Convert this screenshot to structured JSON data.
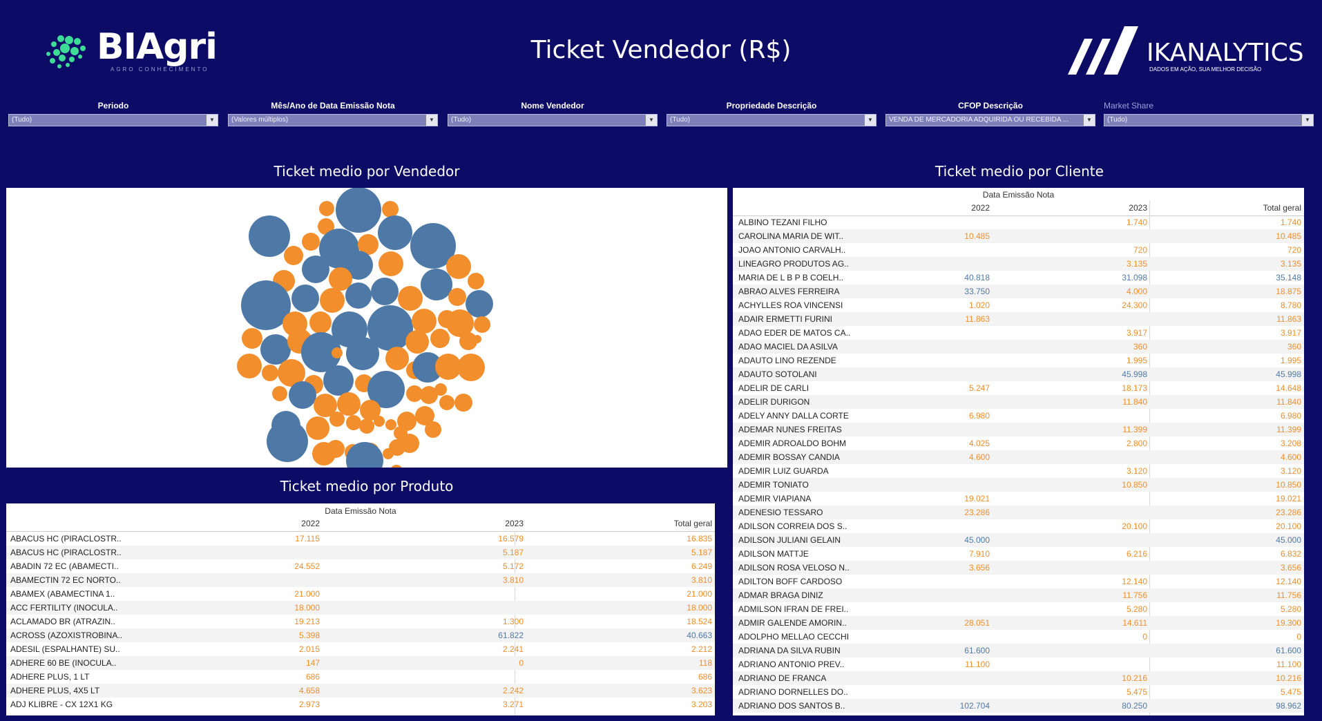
{
  "header": {
    "logo_left": "BIAgri",
    "logo_left_tagline": "AGRO CONHECIMENTO",
    "title": "Ticket Vendedor (R$)",
    "logo_right": "IKANALYTICS",
    "logo_right_tagline": "DADOS EM AÇÃO, SUA MELHOR DECISÃO"
  },
  "colors": {
    "background": "#0c0c66",
    "orange": "#f28e2b",
    "blue": "#4e79a7",
    "accent_logo": "#3ddc97"
  },
  "filters": [
    {
      "label": "Periodo",
      "value": "(Tudo)"
    },
    {
      "label": "Mês/Ano de Data Emissão Nota",
      "value": "(Valores múltiplos)"
    },
    {
      "label": "Nome Vendedor",
      "value": "(Tudo)"
    },
    {
      "label": "Propriedade Descrição",
      "value": "(Tudo)"
    },
    {
      "label": "CFOP Descrição",
      "value": "VENDA DE MERCADORIA ADQUIRIDA OU RECEBIDA ..."
    },
    {
      "label": "Market Share",
      "value": "(Tudo)"
    }
  ],
  "vendedor_section": {
    "title": "Ticket medio por Vendedor"
  },
  "produto_section": {
    "title": "Ticket medio por Produto",
    "group_header": "Data Emissão Nota",
    "columns": [
      "2022",
      "2023",
      "Total geral"
    ],
    "rows": [
      {
        "name": "ABACUS HC (PIRACLOSTR..",
        "y2022": "17.115",
        "y2023": "16.579",
        "total": "16.835",
        "c2022": "o",
        "c2023": "o",
        "ctotal": "o"
      },
      {
        "name": "ABACUS HC (PIRACLOSTR..",
        "y2022": "",
        "y2023": "5.187",
        "total": "5.187",
        "c2022": "o",
        "c2023": "o",
        "ctotal": "o"
      },
      {
        "name": "ABADIN 72 EC (ABAMECTI..",
        "y2022": "24.552",
        "y2023": "5.172",
        "total": "6.249",
        "c2022": "o",
        "c2023": "o",
        "ctotal": "o"
      },
      {
        "name": "ABAMECTIN 72 EC NORTO..",
        "y2022": "",
        "y2023": "3.810",
        "total": "3.810",
        "c2022": "o",
        "c2023": "o",
        "ctotal": "o"
      },
      {
        "name": "ABAMEX (ABAMECTINA 1..",
        "y2022": "21.000",
        "y2023": "",
        "total": "21.000",
        "c2022": "o",
        "c2023": "o",
        "ctotal": "o"
      },
      {
        "name": "ACC FERTILITY (INOCULA..",
        "y2022": "18.000",
        "y2023": "",
        "total": "18.000",
        "c2022": "o",
        "c2023": "o",
        "ctotal": "o"
      },
      {
        "name": "ACLAMADO BR (ATRAZIN..",
        "y2022": "19.213",
        "y2023": "1.300",
        "total": "18.524",
        "c2022": "o",
        "c2023": "o",
        "ctotal": "o"
      },
      {
        "name": "ACROSS (AZOXISTROBINA..",
        "y2022": "5.398",
        "y2023": "61.822",
        "total": "40.663",
        "c2022": "o",
        "c2023": "b",
        "ctotal": "b"
      },
      {
        "name": "ADESIL (ESPALHANTE) SU..",
        "y2022": "2.015",
        "y2023": "2.241",
        "total": "2.212",
        "c2022": "o",
        "c2023": "o",
        "ctotal": "o"
      },
      {
        "name": "ADHERE 60 BE (INOCULA..",
        "y2022": "147",
        "y2023": "0",
        "total": "118",
        "c2022": "o",
        "c2023": "o",
        "ctotal": "o"
      },
      {
        "name": "ADHERE PLUS, 1 LT",
        "y2022": "686",
        "y2023": "",
        "total": "686",
        "c2022": "o",
        "c2023": "o",
        "ctotal": "o"
      },
      {
        "name": "ADHERE PLUS, 4X5 LT",
        "y2022": "4.658",
        "y2023": "2.242",
        "total": "3.623",
        "c2022": "o",
        "c2023": "o",
        "ctotal": "o"
      },
      {
        "name": "ADJ KLIBRE - CX 12X1 KG",
        "y2022": "2.973",
        "y2023": "3.271",
        "total": "3.203",
        "c2022": "o",
        "c2023": "o",
        "ctotal": "o"
      }
    ]
  },
  "cliente_section": {
    "title": "Ticket medio por Cliente",
    "group_header": "Data Emissão Nota",
    "columns": [
      "2022",
      "2023",
      "Total geral"
    ],
    "rows": [
      {
        "name": "ALBINO TEZANI FILHO",
        "y2022": "",
        "y2023": "1.740",
        "total": "1.740",
        "c2022": "o",
        "c2023": "o",
        "ctotal": "o"
      },
      {
        "name": "CAROLINA MARIA DE WIT..",
        "y2022": "10.485",
        "y2023": "",
        "total": "10.485",
        "c2022": "o",
        "c2023": "o",
        "ctotal": "o"
      },
      {
        "name": "JOAO ANTONIO CARVALH..",
        "y2022": "",
        "y2023": "720",
        "total": "720",
        "c2022": "o",
        "c2023": "o",
        "ctotal": "o"
      },
      {
        "name": "LINEAGRO PRODUTOS AG..",
        "y2022": "",
        "y2023": "3.135",
        "total": "3.135",
        "c2022": "o",
        "c2023": "o",
        "ctotal": "o"
      },
      {
        "name": "MARIA DE L B P B COELH..",
        "y2022": "40.818",
        "y2023": "31.098",
        "total": "35.148",
        "c2022": "b",
        "c2023": "b",
        "ctotal": "b"
      },
      {
        "name": "ABRAO ALVES FERREIRA",
        "y2022": "33.750",
        "y2023": "4.000",
        "total": "18.875",
        "c2022": "b",
        "c2023": "o",
        "ctotal": "o"
      },
      {
        "name": "ACHYLLES ROA VINCENSI",
        "y2022": "1.020",
        "y2023": "24.300",
        "total": "8.780",
        "c2022": "o",
        "c2023": "o",
        "ctotal": "o"
      },
      {
        "name": "ADAIR ERMETTI FURINI",
        "y2022": "11.863",
        "y2023": "",
        "total": "11.863",
        "c2022": "o",
        "c2023": "o",
        "ctotal": "o"
      },
      {
        "name": "ADAO EDER DE MATOS CA..",
        "y2022": "",
        "y2023": "3.917",
        "total": "3.917",
        "c2022": "o",
        "c2023": "o",
        "ctotal": "o"
      },
      {
        "name": "ADAO MACIEL DA ASILVA",
        "y2022": "",
        "y2023": "360",
        "total": "360",
        "c2022": "o",
        "c2023": "o",
        "ctotal": "o"
      },
      {
        "name": "ADAUTO LINO REZENDE",
        "y2022": "",
        "y2023": "1.995",
        "total": "1.995",
        "c2022": "o",
        "c2023": "o",
        "ctotal": "o"
      },
      {
        "name": "ADAUTO SOTOLANI",
        "y2022": "",
        "y2023": "45.998",
        "total": "45.998",
        "c2022": "o",
        "c2023": "b",
        "ctotal": "b"
      },
      {
        "name": "ADELIR DE CARLI",
        "y2022": "5.247",
        "y2023": "18.173",
        "total": "14.648",
        "c2022": "o",
        "c2023": "o",
        "ctotal": "o"
      },
      {
        "name": "ADELIR DURIGON",
        "y2022": "",
        "y2023": "11.840",
        "total": "11.840",
        "c2022": "o",
        "c2023": "o",
        "ctotal": "o"
      },
      {
        "name": "ADELY ANNY DALLA CORTE",
        "y2022": "6.980",
        "y2023": "",
        "total": "6.980",
        "c2022": "o",
        "c2023": "o",
        "ctotal": "o"
      },
      {
        "name": "ADEMAR NUNES FREITAS",
        "y2022": "",
        "y2023": "11.399",
        "total": "11.399",
        "c2022": "o",
        "c2023": "o",
        "ctotal": "o"
      },
      {
        "name": "ADEMIR ADROALDO BOHM",
        "y2022": "4.025",
        "y2023": "2.800",
        "total": "3.208",
        "c2022": "o",
        "c2023": "o",
        "ctotal": "o"
      },
      {
        "name": "ADEMIR BOSSAY CANDIA",
        "y2022": "4.600",
        "y2023": "",
        "total": "4.600",
        "c2022": "o",
        "c2023": "o",
        "ctotal": "o"
      },
      {
        "name": "ADEMIR LUIZ GUARDA",
        "y2022": "",
        "y2023": "3.120",
        "total": "3.120",
        "c2022": "o",
        "c2023": "o",
        "ctotal": "o"
      },
      {
        "name": "ADEMIR TONIATO",
        "y2022": "",
        "y2023": "10.850",
        "total": "10.850",
        "c2022": "o",
        "c2023": "o",
        "ctotal": "o"
      },
      {
        "name": "ADEMIR VIAPIANA",
        "y2022": "19.021",
        "y2023": "",
        "total": "19.021",
        "c2022": "o",
        "c2023": "o",
        "ctotal": "o"
      },
      {
        "name": "ADENESIO TESSARO",
        "y2022": "23.286",
        "y2023": "",
        "total": "23.286",
        "c2022": "o",
        "c2023": "o",
        "ctotal": "o"
      },
      {
        "name": "ADILSON CORREIA DOS S..",
        "y2022": "",
        "y2023": "20.100",
        "total": "20.100",
        "c2022": "o",
        "c2023": "o",
        "ctotal": "o"
      },
      {
        "name": "ADILSON JULIANI GELAIN",
        "y2022": "45.000",
        "y2023": "",
        "total": "45.000",
        "c2022": "b",
        "c2023": "o",
        "ctotal": "b"
      },
      {
        "name": "ADILSON MATTJE",
        "y2022": "7.910",
        "y2023": "6.216",
        "total": "6.832",
        "c2022": "o",
        "c2023": "o",
        "ctotal": "o"
      },
      {
        "name": "ADILSON ROSA VELOSO N..",
        "y2022": "3.656",
        "y2023": "",
        "total": "3.656",
        "c2022": "o",
        "c2023": "o",
        "ctotal": "o"
      },
      {
        "name": "ADILTON BOFF CARDOSO",
        "y2022": "",
        "y2023": "12.140",
        "total": "12.140",
        "c2022": "o",
        "c2023": "o",
        "ctotal": "o"
      },
      {
        "name": "ADMAR BRAGA DINIZ",
        "y2022": "",
        "y2023": "11.756",
        "total": "11.756",
        "c2022": "o",
        "c2023": "o",
        "ctotal": "o"
      },
      {
        "name": "ADMILSON IFRAN DE FREI..",
        "y2022": "",
        "y2023": "5.280",
        "total": "5.280",
        "c2022": "o",
        "c2023": "o",
        "ctotal": "o"
      },
      {
        "name": "ADMIR GALENDE AMORIN..",
        "y2022": "28.051",
        "y2023": "14.611",
        "total": "19.300",
        "c2022": "o",
        "c2023": "o",
        "ctotal": "o"
      },
      {
        "name": "ADOLPHO MELLAO CECCHI",
        "y2022": "",
        "y2023": "0",
        "total": "0",
        "c2022": "o",
        "c2023": "o",
        "ctotal": "o"
      },
      {
        "name": "ADRIANA DA SILVA RUBIN",
        "y2022": "61.600",
        "y2023": "",
        "total": "61.600",
        "c2022": "b",
        "c2023": "o",
        "ctotal": "b"
      },
      {
        "name": "ADRIANO ANTONIO PREV..",
        "y2022": "11.100",
        "y2023": "",
        "total": "11.100",
        "c2022": "o",
        "c2023": "o",
        "ctotal": "o"
      },
      {
        "name": "ADRIANO DE FRANCA",
        "y2022": "",
        "y2023": "10.216",
        "total": "10.216",
        "c2022": "o",
        "c2023": "o",
        "ctotal": "o"
      },
      {
        "name": "ADRIANO DORNELLES DO..",
        "y2022": "",
        "y2023": "5.475",
        "total": "5.475",
        "c2022": "o",
        "c2023": "o",
        "ctotal": "o"
      },
      {
        "name": "ADRIANO DOS SANTOS B..",
        "y2022": "102.704",
        "y2023": "80.250",
        "total": "98.962",
        "c2022": "b",
        "c2023": "b",
        "ctotal": "b"
      }
    ]
  }
}
